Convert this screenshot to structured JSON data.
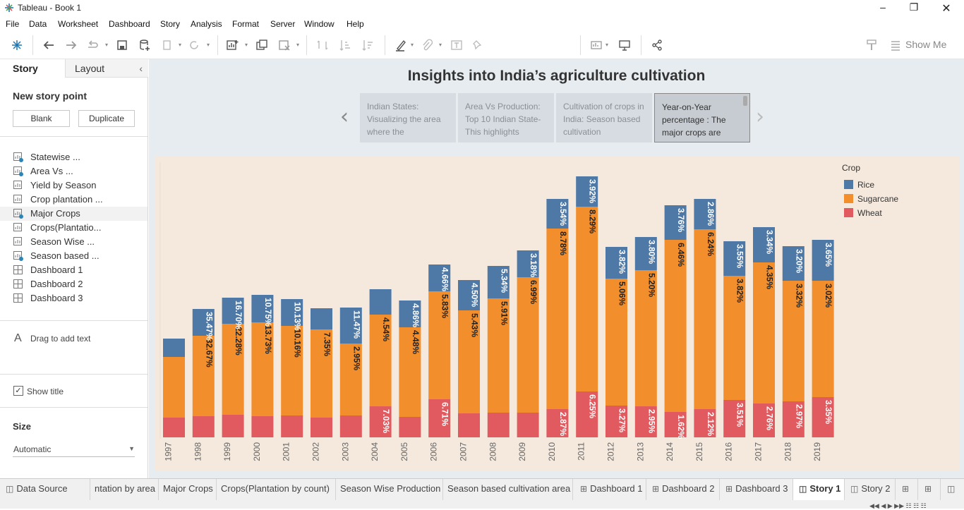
{
  "window": {
    "title": "Tableau - Book 1"
  },
  "menu": [
    "File",
    "Data",
    "Worksheet",
    "Dashboard",
    "Story",
    "Analysis",
    "Format",
    "Server",
    "Window",
    "Help"
  ],
  "toolbar": {
    "show_me": "Show Me"
  },
  "left_panel": {
    "tabs": {
      "story": "Story",
      "layout": "Layout"
    },
    "new_story_point": "New story point",
    "blank_button": "Blank",
    "duplicate_button": "Duplicate",
    "sheets": [
      "Statewise ...",
      "Area Vs ...",
      "Yield by Season",
      "Crop plantation ...",
      "Major Crops",
      "Crops(Plantatio...",
      "Season Wise ...",
      "Season based ...",
      "Dashboard 1",
      "Dashboard 2",
      "Dashboard 3"
    ],
    "drag_text": "Drag to add text",
    "show_title": "Show title",
    "size_label": "Size",
    "size_value": "Automatic"
  },
  "story": {
    "title": "Insights into India’s agriculture cultivation",
    "points": [
      "Indian States: Visualizing the area where the",
      "Area Vs Production: Top 10 Indian State- This highlights",
      "Cultivation of crops in India: Season based cultivation",
      "Year-on-Year percentage : The major crops are"
    ]
  },
  "chart_data": {
    "type": "bar",
    "stacked": true,
    "categories": [
      "1997",
      "1998",
      "1999",
      "2000",
      "2001",
      "2002",
      "2003",
      "2004",
      "2005",
      "2006",
      "2007",
      "2008",
      "2009",
      "2010",
      "2011",
      "2012",
      "2013",
      "2014",
      "2015",
      "2016",
      "2017",
      "2018",
      "2019"
    ],
    "series": [
      {
        "name": "Wheat",
        "color": "#e05a5f",
        "values": [
          28,
          30,
          32,
          30,
          31,
          28,
          31,
          44,
          29,
          54,
          34,
          35,
          35,
          40,
          65,
          45,
          44,
          36,
          40,
          53,
          48,
          51,
          57
        ],
        "labels": [
          "",
          "",
          "",
          "",
          "",
          "",
          "",
          "7.03%",
          "",
          "6.71%",
          "",
          "",
          "",
          "2.87%",
          "6.25%",
          "3.27%",
          "2.95%",
          "1.62%",
          "2.12%",
          "3.51%",
          "2.76%",
          "2.97%",
          "3.35%"
        ]
      },
      {
        "name": "Sugarcane",
        "color": "#f28e2b",
        "values": [
          86,
          114,
          129,
          133,
          127,
          125,
          102,
          130,
          127,
          153,
          146,
          162,
          192,
          256,
          262,
          180,
          193,
          244,
          255,
          176,
          200,
          171,
          165
        ],
        "labels": [
          "",
          "32.67%",
          "22.28%",
          "13.73%",
          "10.16%",
          "7.35%",
          "2.95%",
          "4.54%",
          "4.48%",
          "5.83%",
          "5.43%",
          "5.91%",
          "6.99%",
          "8.78%",
          "8.29%",
          "5.06%",
          "5.20%",
          "6.46%",
          "6.24%",
          "3.82%",
          "4.35%",
          "3.32%",
          "3.02%"
        ]
      },
      {
        "name": "Rice",
        "color": "#4e79a7",
        "values": [
          26,
          38,
          37,
          39,
          38,
          30,
          51,
          36,
          38,
          38,
          43,
          46,
          38,
          42,
          43,
          45,
          47,
          49,
          43,
          49,
          50,
          49,
          58
        ],
        "labels": [
          "",
          "35.47%",
          "16.70%",
          "10.75%",
          "10.13%",
          "",
          "11.47%",
          "",
          "4.86%",
          "4.66%",
          "4.50%",
          "5.34%",
          "3.18%",
          "3.54%",
          "3.92%",
          "3.82%",
          "3.80%",
          "3.76%",
          "2.86%",
          "3.55%",
          "3.34%",
          "3.20%",
          "3.65%"
        ]
      }
    ],
    "legend": {
      "title": "Crop",
      "items": [
        "Rice",
        "Sugarcane",
        "Wheat"
      ],
      "position": "top-right"
    }
  },
  "bottom_tabs": [
    "Data Source",
    "ntation by area",
    "Major Crops",
    "Crops(Plantation by count)",
    "Season Wise Production",
    "Season based cultivation area",
    "Dashboard 1",
    "Dashboard 2",
    "Dashboard 3",
    "Story 1",
    "Story 2"
  ]
}
